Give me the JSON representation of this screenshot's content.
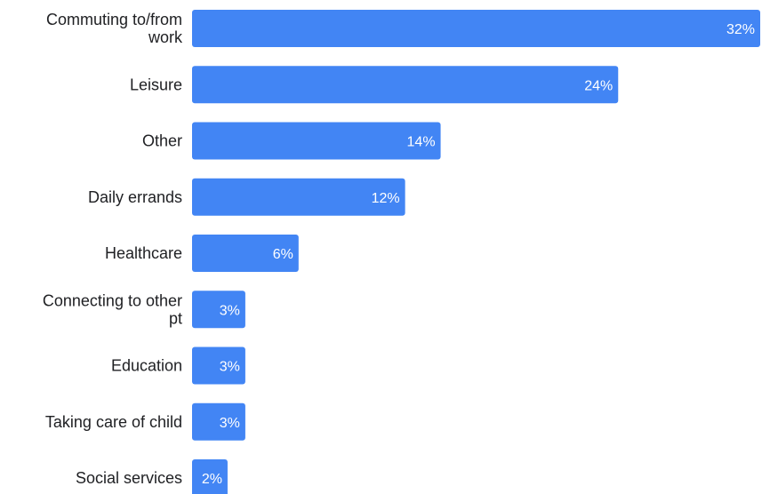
{
  "chart_data": {
    "type": "bar",
    "orientation": "horizontal",
    "categories": [
      "Commuting to/from work",
      "Leisure",
      "Other",
      "Daily errands",
      "Healthcare",
      "Connecting to other pt",
      "Education",
      "Taking care of child",
      "Social services"
    ],
    "category_lines": [
      [
        "Commuting to/from",
        "work"
      ],
      [
        "Leisure"
      ],
      [
        "Other"
      ],
      [
        "Daily errands"
      ],
      [
        "Healthcare"
      ],
      [
        "Connecting to other",
        "pt"
      ],
      [
        "Education"
      ],
      [
        "Taking care of child"
      ],
      [
        "Social services"
      ]
    ],
    "values": [
      32,
      24,
      14,
      12,
      6,
      3,
      3,
      3,
      2
    ],
    "value_labels": [
      "32%",
      "24%",
      "14%",
      "12%",
      "6%",
      "3%",
      "3%",
      "3%",
      "2%"
    ],
    "title": "",
    "xlabel": "",
    "ylabel": "",
    "xlim": [
      0,
      32
    ],
    "grid": false,
    "bar_color": "#4285f4",
    "value_label_color": "#ffffff",
    "category_label_color": "#202124"
  }
}
